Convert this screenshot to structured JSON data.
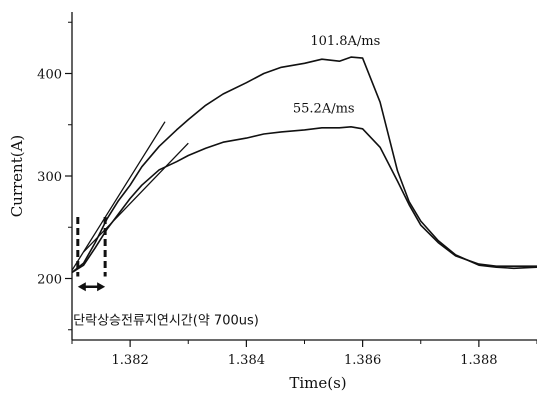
{
  "chart_data": {
    "type": "line",
    "xlabel": "Time(s)",
    "ylabel": "Current(A)",
    "xlim": [
      1.381,
      1.389
    ],
    "ylim": [
      140,
      460
    ],
    "x_ticks": [
      {
        "value": 1.382,
        "label": "1.382"
      },
      {
        "value": 1.384,
        "label": "1.384"
      },
      {
        "value": 1.386,
        "label": "1.386"
      },
      {
        "value": 1.388,
        "label": "1.388"
      }
    ],
    "y_ticks": [
      {
        "value": 200,
        "label": "200"
      },
      {
        "value": 300,
        "label": "300"
      },
      {
        "value": 400,
        "label": "400"
      }
    ],
    "grid": false,
    "series": [
      {
        "name": "101.8A/ms",
        "x": [
          1.381,
          1.3812,
          1.3814,
          1.3816,
          1.3818,
          1.382,
          1.3822,
          1.3825,
          1.3828,
          1.383,
          1.3833,
          1.3836,
          1.384,
          1.3843,
          1.3846,
          1.385,
          1.3853,
          1.3856,
          1.3858,
          1.386,
          1.3863,
          1.3866,
          1.3868,
          1.387,
          1.3873,
          1.3876,
          1.388,
          1.3883,
          1.3886,
          1.389
        ],
        "y": [
          206,
          215,
          235,
          258,
          276,
          291,
          309,
          329,
          345,
          355,
          369,
          380,
          391,
          400,
          406,
          410,
          414,
          412,
          416,
          415,
          372,
          305,
          275,
          256,
          237,
          223,
          213,
          211,
          210,
          211
        ]
      },
      {
        "name": "55.2A/ms",
        "x": [
          1.381,
          1.3812,
          1.3814,
          1.3816,
          1.3818,
          1.382,
          1.3822,
          1.3825,
          1.3828,
          1.383,
          1.3833,
          1.3836,
          1.384,
          1.3843,
          1.3846,
          1.385,
          1.3853,
          1.3856,
          1.3858,
          1.386,
          1.3863,
          1.3866,
          1.3868,
          1.387,
          1.3873,
          1.3876,
          1.388,
          1.3883,
          1.3886,
          1.389
        ],
        "y": [
          206,
          213,
          230,
          248,
          263,
          278,
          291,
          306,
          314,
          320,
          327,
          333,
          337,
          341,
          343,
          345,
          347,
          347,
          348,
          346,
          328,
          295,
          272,
          252,
          235,
          222,
          214,
          212,
          212,
          212
        ]
      },
      {
        "name": "",
        "style": "tangent",
        "x": [
          1.381,
          1.3826
        ],
        "y": [
          208,
          353
        ]
      },
      {
        "name": "",
        "style": "tangent",
        "x": [
          1.3812,
          1.383
        ],
        "y": [
          226,
          332
        ]
      }
    ],
    "annotations": [
      {
        "text": "101.8A/ms",
        "x": 1.3851,
        "y": 428
      },
      {
        "text": "55.2A/ms",
        "x": 1.3848,
        "y": 362
      },
      {
        "text": "단락상승전류지연시간(약 700us)",
        "x": 1.38102,
        "y": 155
      }
    ],
    "markers": {
      "dashed_vlines": [
        1.3811,
        1.38157
      ],
      "dashed_ylim": [
        202,
        260
      ],
      "span_arrow": {
        "x": [
          1.3811,
          1.38157
        ],
        "y": 192
      }
    }
  }
}
